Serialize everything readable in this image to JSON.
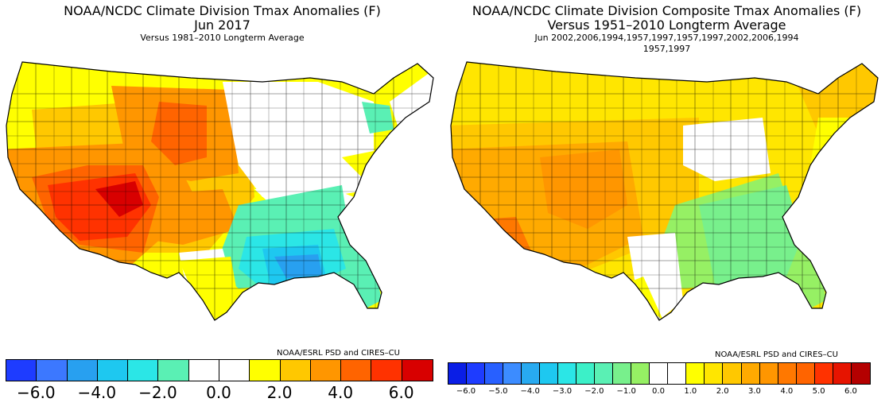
{
  "left": {
    "title1": "NOAA/NCDC Climate Division Tmax Anomalies (F)",
    "title2": "Jun 2017",
    "title3": "Versus 1981–2010 Longterm Average",
    "credit": "NOAA/ESRL PSD and CIRES–CU",
    "colorbar": {
      "colors": [
        "#1e3cff",
        "#3c78ff",
        "#28a0f0",
        "#1ec8f0",
        "#2be6e6",
        "#5af0b4",
        "#ffffff",
        "#ffffff",
        "#ffff00",
        "#ffc800",
        "#ff9600",
        "#ff6400",
        "#ff3200",
        "#d80000"
      ],
      "labels": [
        "−6.0",
        "−4.0",
        "−2.0",
        "0.0",
        "2.0",
        "4.0",
        "6.0"
      ]
    }
  },
  "right": {
    "title1": "NOAA/NCDC Climate Division Composite Tmax Anomalies (F)",
    "title2": "Versus 1951–2010 Longterm Average",
    "title3": "Jun  2002,2006,1994,1957,1997,1957,1997,2002,2006,1994",
    "title4": "1957,1997",
    "credit": "NOAA/ESRL PSD and CIRES–CU",
    "colorbar": {
      "colors": [
        "#0a1ee6",
        "#1e3cff",
        "#2860ff",
        "#3c8cff",
        "#28aaf0",
        "#1ec8f0",
        "#2be6e6",
        "#3cf0c8",
        "#5af0b4",
        "#78f08c",
        "#96f064",
        "#ffffff",
        "#ffffff",
        "#ffff00",
        "#ffe600",
        "#ffc800",
        "#ffaa00",
        "#ff9600",
        "#ff7800",
        "#ff6400",
        "#ff3200",
        "#e61400",
        "#b40000"
      ],
      "labels": [
        "−6.0",
        "−5.0",
        "−4.0",
        "−3.0",
        "−2.0",
        "−1.0",
        "0.0",
        "1.0",
        "2.0",
        "3.0",
        "4.0",
        "5.0",
        "6.0"
      ]
    }
  }
}
